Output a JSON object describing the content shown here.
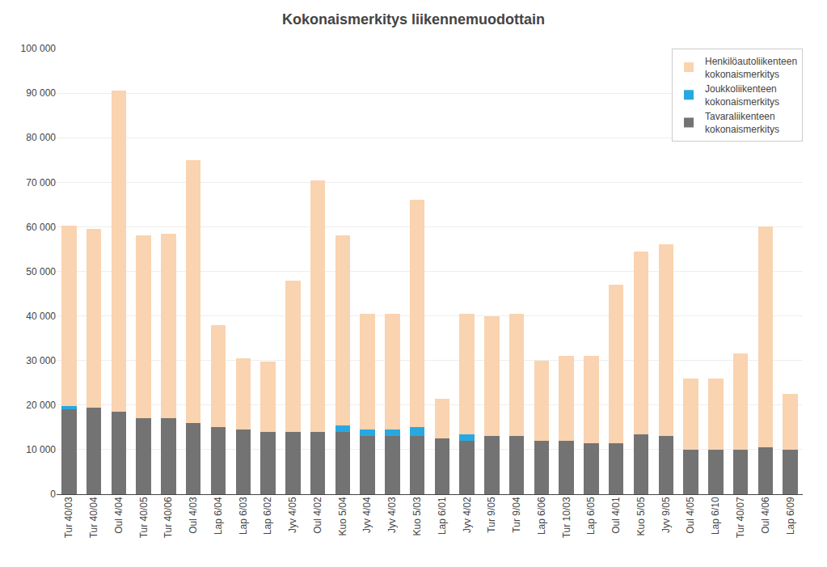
{
  "chart_data": {
    "type": "bar",
    "stacked": true,
    "title": "Kokonaismerkitys liikennemuodottain",
    "categories": [
      "Tur 40/03",
      "Tur 40/04",
      "Oul 4/04",
      "Tur 40/05",
      "Tur 40/06",
      "Oul 4/03",
      "Lap 6/04",
      "Lap 6/03",
      "Lap 6/02",
      "Jyv 4/05",
      "Oul 4/02",
      "Kuo 5/04",
      "Jyv 4/04",
      "Jyv 4/03",
      "Kuo 5/03",
      "Lap 6/01",
      "Jyv 4/02",
      "Tur 9/05",
      "Tur 9/04",
      "Lap 6/06",
      "Tur 10/03",
      "Lap 6/05",
      "Oul 4/01",
      "Kuo 5/05",
      "Jyv 9/05",
      "Oul 4/05",
      "Lap 6/10",
      "Tur 40/07",
      "Oul 4/06",
      "Lap 6/09"
    ],
    "series": [
      {
        "name": "Tavaraliikenteen\nkokonaismerkitys",
        "color": "#737373",
        "values": [
          19000,
          19500,
          18500,
          17000,
          17000,
          16000,
          15000,
          14500,
          14000,
          14000,
          14000,
          14000,
          13000,
          13000,
          13000,
          12500,
          12000,
          13000,
          13000,
          12000,
          12000,
          11500,
          11500,
          13500,
          13000,
          10000,
          10000,
          10000,
          10500,
          10000
        ]
      },
      {
        "name": "Joukkoliikenteen\nkokonaismerkitys",
        "color": "#29a8e0",
        "values": [
          700,
          0,
          0,
          0,
          0,
          0,
          0,
          0,
          0,
          0,
          0,
          1500,
          1500,
          1500,
          2000,
          0,
          1500,
          0,
          0,
          0,
          0,
          0,
          0,
          0,
          0,
          0,
          0,
          0,
          0,
          0
        ]
      },
      {
        "name": "Henkilöautoliikenteen\nkokonaismerkitys",
        "color": "#fad3b0",
        "values": [
          40500,
          40000,
          72000,
          41000,
          41500,
          59000,
          23000,
          16000,
          15800,
          34000,
          56500,
          42500,
          26000,
          26000,
          51000,
          9000,
          27000,
          27000,
          27500,
          18000,
          19000,
          19500,
          35500,
          41000,
          43000,
          16000,
          16000,
          21500,
          49500,
          12500
        ]
      }
    ],
    "ylim": [
      0,
      100000
    ],
    "yticks": [
      0,
      {
        "value": 10000,
        "label": "10 000"
      },
      {
        "value": 20000,
        "label": "20 000"
      },
      {
        "value": 30000,
        "label": "30 000"
      },
      {
        "value": 40000,
        "label": "40 000"
      },
      {
        "value": 50000,
        "label": "50 000"
      },
      {
        "value": 60000,
        "label": "60 000"
      },
      {
        "value": 70000,
        "label": "70 000"
      },
      {
        "value": 80000,
        "label": "80 000"
      },
      {
        "value": 90000,
        "label": "90 000"
      },
      {
        "value": 100000,
        "label": "100 000"
      }
    ],
    "grid": true,
    "legend": "upper right"
  }
}
